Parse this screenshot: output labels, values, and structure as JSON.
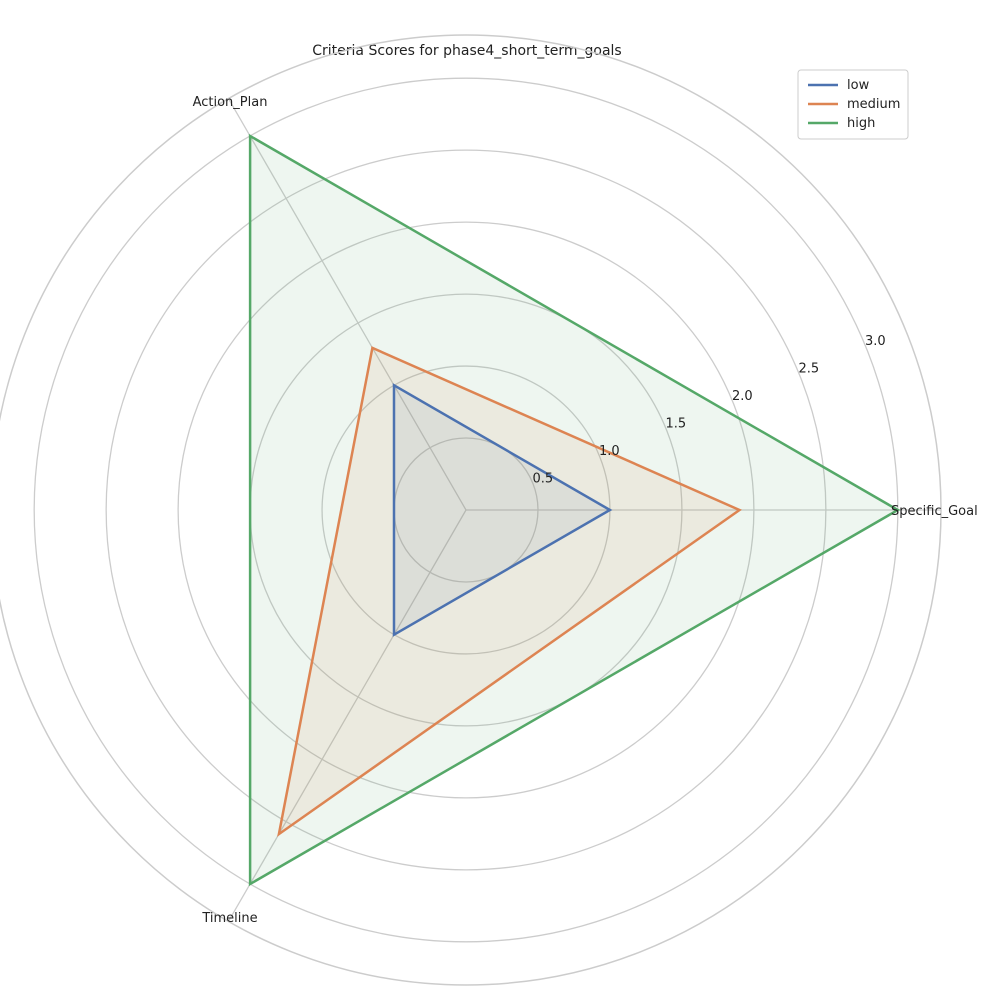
{
  "chart_data": {
    "type": "radar",
    "title": "Criteria Scores for phase4_short_term_goals",
    "axes": [
      "Specific_Goal",
      "Action_Plan",
      "Timeline"
    ],
    "rlim": [
      0,
      3.3
    ],
    "rticks": [
      0.5,
      1.0,
      1.5,
      2.0,
      2.5,
      3.0
    ],
    "rtick_labels": [
      "0.5",
      "1.0",
      "1.5",
      "2.0",
      "2.5",
      "3.0"
    ],
    "grid": true,
    "legend_position": "top-right",
    "series": [
      {
        "name": "low",
        "values": [
          1,
          1,
          1
        ],
        "color": "#4c72b0"
      },
      {
        "name": "medium",
        "values": [
          1.9,
          1.3,
          2.6
        ],
        "color": "#dd8452"
      },
      {
        "name": "high",
        "values": [
          3,
          3,
          3
        ],
        "color": "#55a868"
      }
    ]
  }
}
